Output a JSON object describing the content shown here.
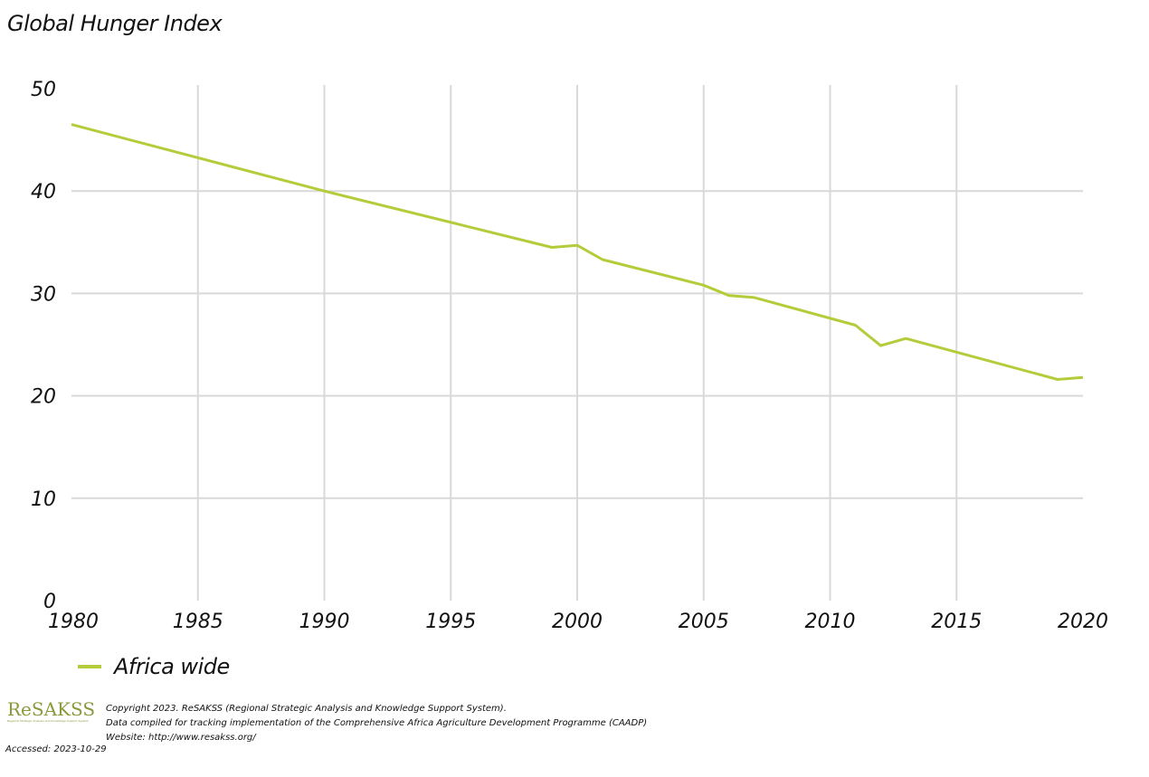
{
  "chart_data": {
    "type": "line",
    "title": "Global Hunger Index",
    "xlabel": "",
    "ylabel": "",
    "xlim": [
      1980,
      2020
    ],
    "ylim": [
      0,
      50
    ],
    "x_ticks": [
      "1980",
      "1985",
      "1990",
      "1995",
      "2000",
      "2005",
      "2010",
      "2015",
      "2020"
    ],
    "y_ticks": [
      "0",
      "10",
      "20",
      "30",
      "40",
      "50"
    ],
    "grid": true,
    "legend_position": "bottom-left",
    "series": [
      {
        "name": "Africa wide",
        "color": "#b5cc3a",
        "x": [
          1980,
          1990,
          1999,
          2000,
          2001,
          2005,
          2006,
          2007,
          2011,
          2012,
          2013,
          2019,
          2020
        ],
        "y": [
          46.5,
          40.0,
          34.5,
          34.7,
          33.3,
          30.8,
          29.8,
          29.6,
          26.9,
          24.9,
          25.6,
          21.6,
          21.8
        ]
      }
    ]
  },
  "footer": {
    "logo_text": "ReSAKSS",
    "logo_subtext": "Regional Strategic Analysis and Knowledge Support System",
    "copyright": "Copyright 2023. ReSAKSS (Regional Strategic Analysis and Knowledge Support System).",
    "data_note": "Data compiled for tracking implementation of the Comprehensive Africa Agriculture Development Programme (CAADP)",
    "website": "Website: http://www.resakss.org/",
    "accessed": "Accessed: 2023-10-29"
  }
}
